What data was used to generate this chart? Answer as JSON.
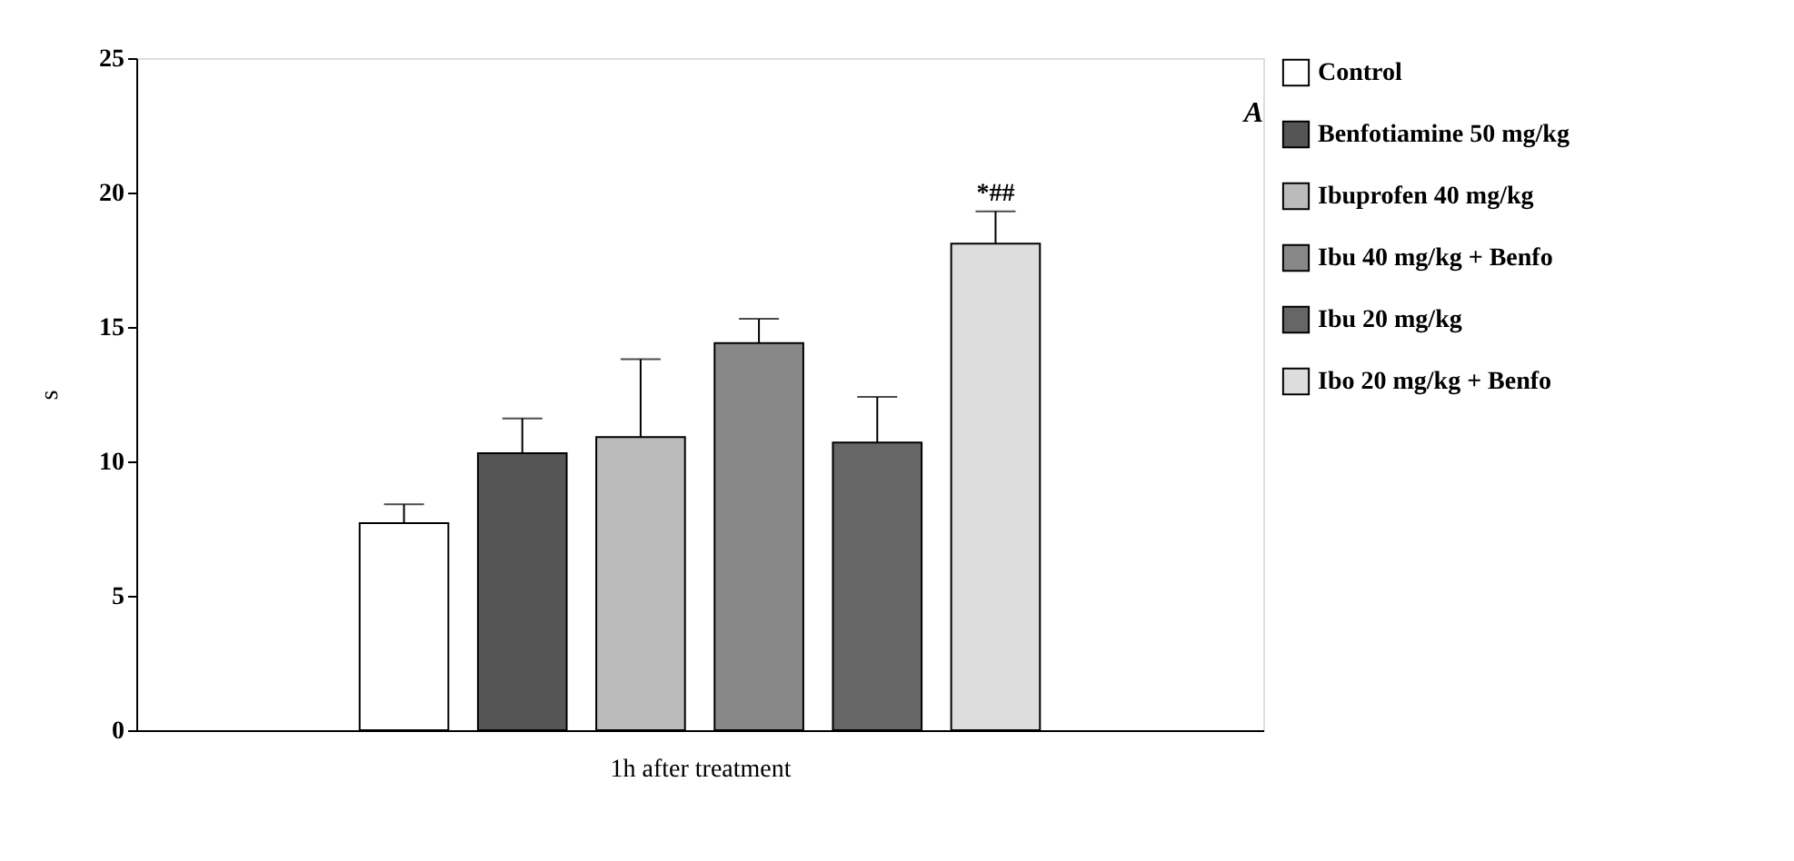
{
  "chart_data": {
    "type": "bar",
    "xlabel": "1h after treatment",
    "ylabel": "s",
    "categories": [
      null
    ],
    "series": [
      {
        "name": "Control",
        "color": "#ffffff",
        "values": [
          7.7
        ],
        "errors": [
          0.7
        ]
      },
      {
        "name": "Benfotiamine 50 mg/kg",
        "color": "#555555",
        "values": [
          10.3
        ],
        "errors": [
          1.3
        ]
      },
      {
        "name": "Ibuprofen 40 mg/kg",
        "color": "#bbbbbb",
        "values": [
          10.9
        ],
        "errors": [
          2.9
        ]
      },
      {
        "name": "Ibu 40 mg/kg + Benfo",
        "color": "#888888",
        "values": [
          14.4
        ],
        "errors": [
          0.9
        ]
      },
      {
        "name": "Ibu 20 mg/kg",
        "color": "#666666",
        "values": [
          10.7
        ],
        "errors": [
          1.7
        ]
      },
      {
        "name": "Ibo 20 mg/kg + Benfo",
        "color": "#dddddd",
        "values": [
          18.1
        ],
        "errors": [
          1.2
        ]
      }
    ],
    "ylim": [
      0,
      25
    ],
    "yticks": [
      0,
      5,
      10,
      15,
      20,
      25
    ],
    "tick_labels": "y",
    "legend": "right",
    "grid": false,
    "annotations": [
      {
        "text": "*##",
        "y": 19.3
      },
      "A"
    ]
  }
}
